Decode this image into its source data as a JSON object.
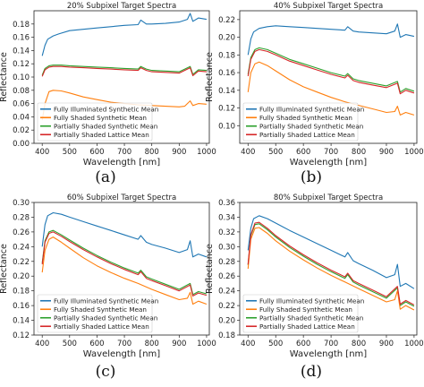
{
  "colors": {
    "illuminated": "#1f77b4",
    "shaded": "#ff7f0e",
    "partial_synthetic": "#2ca02c",
    "partial_lattice": "#d62728"
  },
  "chart_data": [
    {
      "type": "line",
      "panel_label": "(a)",
      "title": "20% Subpixel Target Spectra",
      "xlabel": "Wavelength [nm]",
      "ylabel": "Reflectance",
      "xlim": [
        370,
        1010
      ],
      "ylim": [
        0.0,
        0.2
      ],
      "xticks": [
        400,
        500,
        600,
        700,
        800,
        900,
        1000
      ],
      "yticks": [
        0.0,
        0.02,
        0.04,
        0.06,
        0.08,
        0.1,
        0.12,
        0.14,
        0.16,
        0.18
      ],
      "ytick_labels": [
        "0.00",
        "0.02",
        "0.04",
        "0.06",
        "0.08",
        "0.10",
        "0.12",
        "0.14",
        "0.16",
        "0.18"
      ],
      "legend_loc": "lower-left",
      "series": [
        {
          "name": "Fully Illuminated Synthetic Mean",
          "color_key": "illuminated",
          "x": [
            400,
            410,
            420,
            440,
            460,
            500,
            550,
            600,
            650,
            700,
            750,
            760,
            780,
            800,
            850,
            900,
            930,
            940,
            950,
            970,
            1000
          ],
          "y": [
            0.132,
            0.148,
            0.157,
            0.162,
            0.165,
            0.17,
            0.172,
            0.174,
            0.176,
            0.178,
            0.179,
            0.186,
            0.18,
            0.18,
            0.181,
            0.183,
            0.187,
            0.196,
            0.184,
            0.189,
            0.187
          ]
        },
        {
          "name": "Fully Shaded Synthetic Mean",
          "color_key": "shaded",
          "x": [
            400,
            410,
            425,
            440,
            470,
            500,
            550,
            600,
            650,
            700,
            750,
            800,
            850,
            900,
            920,
            940,
            950,
            970,
            1000
          ],
          "y": [
            0.035,
            0.06,
            0.078,
            0.08,
            0.079,
            0.076,
            0.07,
            0.066,
            0.062,
            0.06,
            0.058,
            0.057,
            0.056,
            0.055,
            0.056,
            0.064,
            0.057,
            0.06,
            0.059
          ]
        },
        {
          "name": "Partially Shaded Synthetic Mean",
          "color_key": "partial_synthetic",
          "x": [
            400,
            410,
            425,
            440,
            470,
            500,
            550,
            600,
            650,
            700,
            750,
            760,
            780,
            800,
            850,
            900,
            940,
            950,
            970,
            1000
          ],
          "y": [
            0.103,
            0.113,
            0.117,
            0.118,
            0.118,
            0.117,
            0.116,
            0.115,
            0.114,
            0.113,
            0.112,
            0.116,
            0.112,
            0.11,
            0.109,
            0.108,
            0.116,
            0.104,
            0.111,
            0.11
          ]
        },
        {
          "name": "Partially Shaded Lattice Mean",
          "color_key": "partial_lattice",
          "x": [
            400,
            410,
            425,
            440,
            470,
            500,
            550,
            600,
            650,
            700,
            750,
            760,
            780,
            800,
            850,
            900,
            940,
            950,
            970,
            1000
          ],
          "y": [
            0.101,
            0.111,
            0.115,
            0.116,
            0.116,
            0.115,
            0.114,
            0.113,
            0.112,
            0.111,
            0.11,
            0.114,
            0.11,
            0.108,
            0.107,
            0.106,
            0.114,
            0.102,
            0.109,
            0.108
          ]
        }
      ]
    },
    {
      "type": "line",
      "panel_label": "(b)",
      "title": "40% Subpixel Target Spectra",
      "xlabel": "Wavelength [nm]",
      "ylabel": "Reflectance",
      "xlim": [
        370,
        1010
      ],
      "ylim": [
        0.08,
        0.23
      ],
      "xticks": [
        400,
        500,
        600,
        700,
        800,
        900,
        1000
      ],
      "yticks": [
        0.1,
        0.12,
        0.14,
        0.16,
        0.18,
        0.2,
        0.22
      ],
      "ytick_labels": [
        "0.10",
        "0.12",
        "0.14",
        "0.16",
        "0.18",
        "0.20",
        "0.22"
      ],
      "legend_loc": "lower-left",
      "series": [
        {
          "name": "Fully Illuminated Synthetic Mean",
          "color_key": "illuminated",
          "x": [
            400,
            410,
            420,
            440,
            470,
            500,
            550,
            600,
            650,
            700,
            750,
            760,
            780,
            800,
            850,
            900,
            930,
            940,
            950,
            970,
            1000
          ],
          "y": [
            0.18,
            0.198,
            0.206,
            0.21,
            0.212,
            0.213,
            0.212,
            0.211,
            0.21,
            0.209,
            0.208,
            0.212,
            0.207,
            0.206,
            0.205,
            0.204,
            0.207,
            0.215,
            0.2,
            0.203,
            0.201
          ]
        },
        {
          "name": "Fully Shaded Synthetic Mean",
          "color_key": "shaded",
          "x": [
            400,
            410,
            425,
            440,
            470,
            500,
            550,
            600,
            650,
            700,
            750,
            800,
            850,
            900,
            930,
            940,
            950,
            970,
            1000
          ],
          "y": [
            0.138,
            0.16,
            0.17,
            0.172,
            0.168,
            0.162,
            0.152,
            0.144,
            0.138,
            0.132,
            0.127,
            0.123,
            0.119,
            0.115,
            0.116,
            0.122,
            0.112,
            0.115,
            0.112
          ]
        },
        {
          "name": "Partially Shaded Synthetic Mean",
          "color_key": "partial_synthetic",
          "x": [
            400,
            410,
            425,
            440,
            470,
            500,
            550,
            600,
            650,
            700,
            750,
            760,
            780,
            800,
            850,
            900,
            940,
            950,
            970,
            1000
          ],
          "y": [
            0.158,
            0.177,
            0.186,
            0.188,
            0.186,
            0.182,
            0.175,
            0.17,
            0.165,
            0.16,
            0.156,
            0.159,
            0.153,
            0.151,
            0.148,
            0.145,
            0.15,
            0.138,
            0.142,
            0.139
          ]
        },
        {
          "name": "Partially Shaded Lattice Mean",
          "color_key": "partial_lattice",
          "x": [
            400,
            410,
            425,
            440,
            470,
            500,
            550,
            600,
            650,
            700,
            750,
            760,
            780,
            800,
            850,
            900,
            940,
            950,
            970,
            1000
          ],
          "y": [
            0.156,
            0.175,
            0.184,
            0.186,
            0.184,
            0.18,
            0.173,
            0.168,
            0.163,
            0.158,
            0.154,
            0.157,
            0.151,
            0.149,
            0.146,
            0.143,
            0.148,
            0.136,
            0.14,
            0.137
          ]
        }
      ]
    },
    {
      "type": "line",
      "panel_label": "(c)",
      "title": "60% Subpixel Target Spectra",
      "xlabel": "Wavelength [nm]",
      "ylabel": "Reflectance",
      "xlim": [
        370,
        1010
      ],
      "ylim": [
        0.12,
        0.3
      ],
      "xticks": [
        400,
        500,
        600,
        700,
        800,
        900,
        1000
      ],
      "yticks": [
        0.12,
        0.14,
        0.16,
        0.18,
        0.2,
        0.22,
        0.24,
        0.26,
        0.28,
        0.3
      ],
      "ytick_labels": [
        "0.12",
        "0.14",
        "0.16",
        "0.18",
        "0.20",
        "0.22",
        "0.24",
        "0.26",
        "0.28",
        "0.30"
      ],
      "legend_loc": "lower-left",
      "series": [
        {
          "name": "Fully Illuminated Synthetic Mean",
          "color_key": "illuminated",
          "x": [
            400,
            410,
            420,
            440,
            470,
            500,
            550,
            600,
            650,
            700,
            750,
            760,
            780,
            800,
            850,
            900,
            930,
            940,
            950,
            970,
            1000
          ],
          "y": [
            0.24,
            0.27,
            0.282,
            0.286,
            0.284,
            0.28,
            0.274,
            0.268,
            0.262,
            0.256,
            0.25,
            0.255,
            0.246,
            0.243,
            0.238,
            0.232,
            0.236,
            0.248,
            0.226,
            0.23,
            0.226
          ]
        },
        {
          "name": "Fully Shaded Synthetic Mean",
          "color_key": "shaded",
          "x": [
            400,
            410,
            425,
            440,
            470,
            500,
            550,
            600,
            650,
            700,
            750,
            800,
            850,
            900,
            930,
            940,
            950,
            970,
            1000
          ],
          "y": [
            0.205,
            0.235,
            0.25,
            0.253,
            0.246,
            0.238,
            0.225,
            0.214,
            0.205,
            0.197,
            0.19,
            0.182,
            0.175,
            0.168,
            0.17,
            0.178,
            0.162,
            0.166,
            0.162
          ]
        },
        {
          "name": "Partially Shaded Synthetic Mean",
          "color_key": "partial_synthetic",
          "x": [
            400,
            410,
            425,
            440,
            470,
            500,
            550,
            600,
            650,
            700,
            750,
            760,
            780,
            800,
            850,
            900,
            940,
            950,
            970,
            1000
          ],
          "y": [
            0.218,
            0.248,
            0.26,
            0.262,
            0.256,
            0.249,
            0.238,
            0.228,
            0.219,
            0.211,
            0.204,
            0.208,
            0.199,
            0.196,
            0.189,
            0.182,
            0.19,
            0.175,
            0.179,
            0.176
          ]
        },
        {
          "name": "Partially Shaded Lattice Mean",
          "color_key": "partial_lattice",
          "x": [
            400,
            410,
            425,
            440,
            470,
            500,
            550,
            600,
            650,
            700,
            750,
            760,
            780,
            800,
            850,
            900,
            940,
            950,
            970,
            1000
          ],
          "y": [
            0.216,
            0.246,
            0.258,
            0.26,
            0.254,
            0.247,
            0.236,
            0.226,
            0.217,
            0.209,
            0.202,
            0.206,
            0.197,
            0.194,
            0.187,
            0.18,
            0.188,
            0.173,
            0.177,
            0.174
          ]
        }
      ]
    },
    {
      "type": "line",
      "panel_label": "(d)",
      "title": "80% Subpixel Target Spectra",
      "xlabel": "Wavelength [nm]",
      "ylabel": "Reflectance",
      "xlim": [
        370,
        1010
      ],
      "ylim": [
        0.18,
        0.36
      ],
      "xticks": [
        400,
        500,
        600,
        700,
        800,
        900,
        1000
      ],
      "yticks": [
        0.18,
        0.2,
        0.22,
        0.24,
        0.26,
        0.28,
        0.3,
        0.32,
        0.34,
        0.36
      ],
      "ytick_labels": [
        "0.18",
        "0.20",
        "0.22",
        "0.24",
        "0.26",
        "0.28",
        "0.30",
        "0.32",
        "0.34",
        "0.36"
      ],
      "legend_loc": "lower-left",
      "series": [
        {
          "name": "Fully Illuminated Synthetic Mean",
          "color_key": "illuminated",
          "x": [
            400,
            410,
            420,
            440,
            470,
            500,
            550,
            600,
            650,
            700,
            750,
            760,
            780,
            800,
            850,
            900,
            930,
            940,
            950,
            970,
            1000
          ],
          "y": [
            0.295,
            0.325,
            0.338,
            0.342,
            0.338,
            0.332,
            0.322,
            0.313,
            0.304,
            0.295,
            0.286,
            0.292,
            0.281,
            0.277,
            0.268,
            0.258,
            0.262,
            0.276,
            0.246,
            0.25,
            0.243
          ]
        },
        {
          "name": "Fully Shaded Synthetic Mean",
          "color_key": "shaded",
          "x": [
            400,
            410,
            425,
            440,
            470,
            500,
            550,
            600,
            650,
            700,
            750,
            800,
            850,
            900,
            930,
            940,
            950,
            970,
            1000
          ],
          "y": [
            0.27,
            0.31,
            0.325,
            0.326,
            0.318,
            0.308,
            0.294,
            0.282,
            0.271,
            0.261,
            0.252,
            0.243,
            0.234,
            0.225,
            0.228,
            0.24,
            0.215,
            0.22,
            0.214
          ]
        },
        {
          "name": "Partially Shaded Synthetic Mean",
          "color_key": "partial_synthetic",
          "x": [
            400,
            410,
            425,
            440,
            470,
            500,
            550,
            600,
            650,
            700,
            750,
            760,
            780,
            800,
            850,
            900,
            940,
            950,
            970,
            1000
          ],
          "y": [
            0.275,
            0.315,
            0.33,
            0.331,
            0.323,
            0.313,
            0.299,
            0.287,
            0.276,
            0.266,
            0.257,
            0.262,
            0.252,
            0.248,
            0.239,
            0.23,
            0.244,
            0.22,
            0.225,
            0.219
          ]
        },
        {
          "name": "Partially Shaded Lattice Mean",
          "color_key": "partial_lattice",
          "x": [
            400,
            410,
            425,
            440,
            470,
            500,
            550,
            600,
            650,
            700,
            750,
            760,
            780,
            800,
            850,
            900,
            940,
            950,
            970,
            1000
          ],
          "y": [
            0.276,
            0.316,
            0.332,
            0.333,
            0.325,
            0.315,
            0.301,
            0.289,
            0.278,
            0.268,
            0.259,
            0.264,
            0.254,
            0.25,
            0.241,
            0.232,
            0.246,
            0.222,
            0.227,
            0.221
          ]
        }
      ]
    }
  ]
}
